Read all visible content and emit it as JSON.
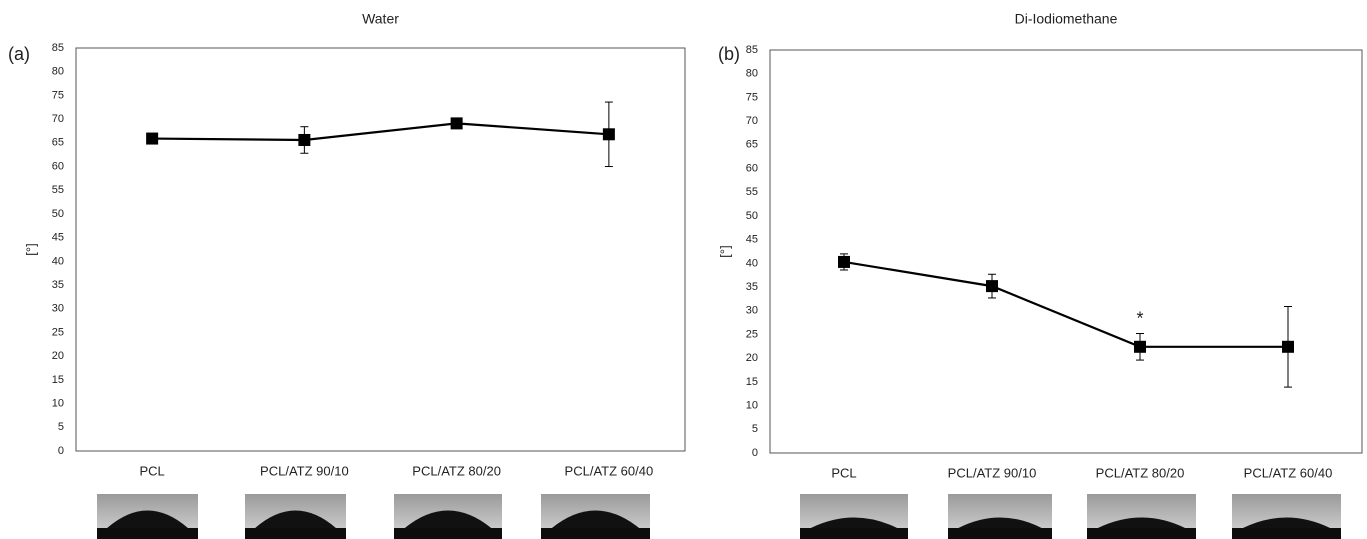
{
  "chart_data": [
    {
      "type": "line",
      "panel_label": "(a)",
      "title": "Water",
      "ylabel": "[°]",
      "categories": [
        "PCL",
        "PCL/ATZ 90/10",
        "PCL/ATZ 80/20",
        "PCL/ATZ 60/40"
      ],
      "values": [
        65.9,
        65.6,
        69.1,
        66.8
      ],
      "errors": [
        0.8,
        2.8,
        0.5,
        6.8
      ],
      "color": "#000000",
      "ylim": [
        0,
        85
      ],
      "yticks": [
        0,
        5,
        10,
        15,
        20,
        25,
        30,
        35,
        40,
        45,
        50,
        55,
        60,
        65,
        70,
        75,
        80,
        85
      ],
      "grid": false
    },
    {
      "type": "line",
      "panel_label": "(b)",
      "title": "Di-Iodiomethane",
      "ylabel": "[°]",
      "categories": [
        "PCL",
        "PCL/ATZ 90/10",
        "PCL/ATZ 80/20",
        "PCL/ATZ 60/40"
      ],
      "values": [
        40.3,
        35.2,
        22.4,
        22.4
      ],
      "errors": [
        1.7,
        2.5,
        2.8,
        8.5
      ],
      "color": "#000000",
      "ylim": [
        0,
        85
      ],
      "yticks": [
        0,
        5,
        10,
        15,
        20,
        25,
        30,
        35,
        40,
        45,
        50,
        55,
        60,
        65,
        70,
        75,
        80,
        85
      ],
      "grid": false,
      "annotation": "*"
    }
  ]
}
